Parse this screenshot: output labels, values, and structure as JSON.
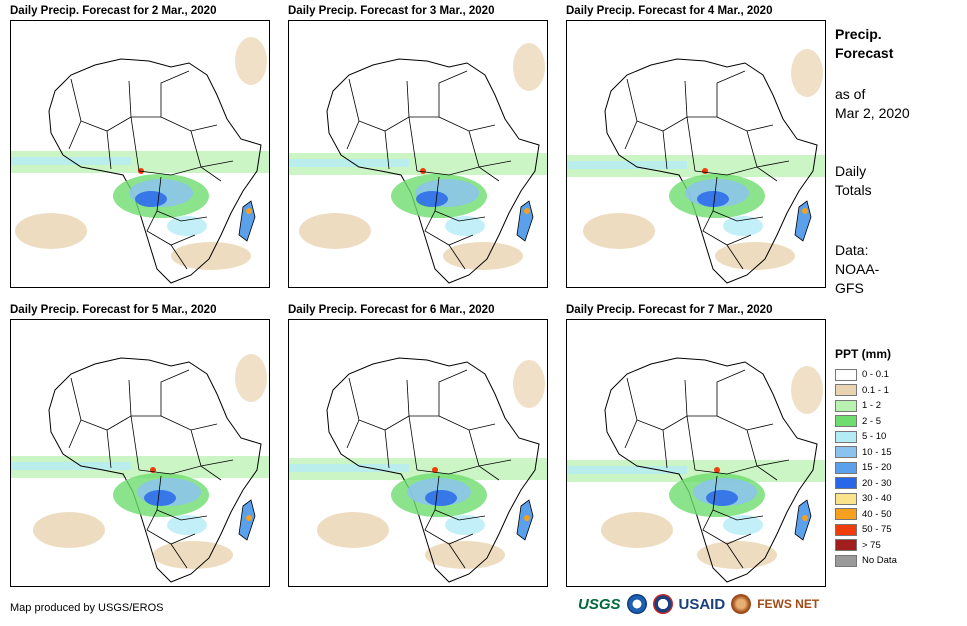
{
  "panels": [
    {
      "title": "Daily Precip. Forecast for 2 Mar., 2020"
    },
    {
      "title": "Daily Precip. Forecast for 3 Mar., 2020"
    },
    {
      "title": "Daily Precip. Forecast for 4 Mar., 2020"
    },
    {
      "title": "Daily Precip. Forecast for 5 Mar., 2020"
    },
    {
      "title": "Daily Precip. Forecast for 6 Mar., 2020"
    },
    {
      "title": "Daily Precip. Forecast for 7 Mar., 2020"
    }
  ],
  "sidebar": {
    "heading_line1": "Precip.",
    "heading_line2": "Forecast",
    "asof_line1": "as of",
    "asof_line2": "Mar 2, 2020",
    "daily_line1": "Daily",
    "daily_line2": "Totals",
    "data_line1": "Data:",
    "data_line2": "NOAA-",
    "data_line3": "GFS"
  },
  "legend": {
    "title": "PPT (mm)",
    "items": [
      {
        "label": "0 - 0.1",
        "color": "#ffffff"
      },
      {
        "label": "0.1 - 1",
        "color": "#e9d3b0"
      },
      {
        "label": "1 - 2",
        "color": "#b9f2b0"
      },
      {
        "label": "2 - 5",
        "color": "#6edc6e"
      },
      {
        "label": "5 - 10",
        "color": "#b4ecf6"
      },
      {
        "label": "10 - 15",
        "color": "#8cc3ee"
      },
      {
        "label": "15 - 20",
        "color": "#5aa0ea"
      },
      {
        "label": "20 - 30",
        "color": "#2868e8"
      },
      {
        "label": "30 - 40",
        "color": "#fae38a"
      },
      {
        "label": "40 - 50",
        "color": "#f5a01e"
      },
      {
        "label": "50 - 75",
        "color": "#f03c0a"
      },
      {
        "label": "> 75",
        "color": "#a01e1e"
      },
      {
        "label": "No Data",
        "color": "#9a9a9a"
      }
    ]
  },
  "footer": {
    "credit": "Map produced by USGS/EROS",
    "logos": [
      "USGS",
      "NOAA",
      "USAID",
      "FEWS NET"
    ]
  }
}
